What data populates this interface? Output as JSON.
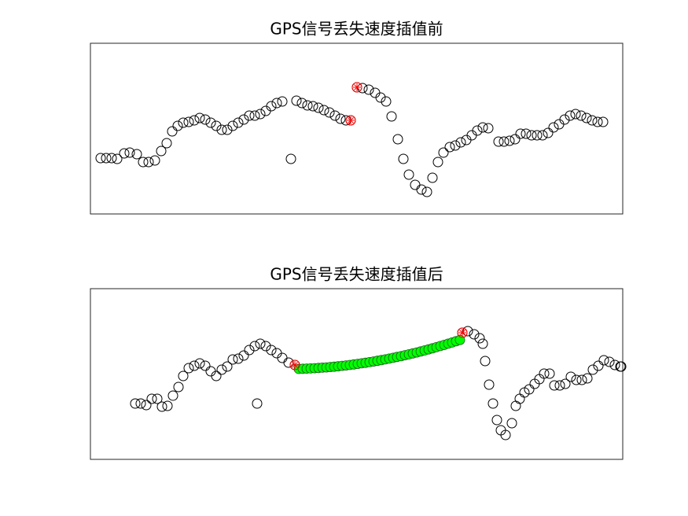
{
  "chart_data": [
    {
      "type": "scatter",
      "title": "GPS信号丢失速度插值前",
      "xlim": [
        0,
        677
      ],
      "ylim": [
        0,
        217
      ],
      "box": true,
      "series": [
        {
          "color": "#000000",
          "marker": "o",
          "x": [
            13,
            20,
            27,
            34,
            43,
            50,
            59,
            67,
            74,
            82,
            90,
            97,
            104,
            111,
            118,
            125,
            132,
            139,
            146,
            153,
            160,
            167,
            174,
            181,
            188,
            195,
            202,
            209,
            216,
            223,
            230,
            237,
            244,
            255,
            262,
            269,
            276,
            283,
            290,
            297,
            304,
            311,
            318,
            325,
            331,
            339,
            346,
            354,
            362,
            369,
            376,
            383,
            391,
            398,
            405,
            413,
            421,
            428,
            435,
            442,
            449,
            457,
            464,
            471,
            478,
            485,
            492,
            499,
            506,
            519,
            526,
            533,
            540,
            547,
            554,
            561,
            568,
            575,
            582,
            589,
            596,
            603,
            610,
            617,
            624,
            631,
            638,
            645,
            652
          ],
          "y": [
            71,
            71,
            71,
            70,
            77,
            78,
            76,
            66,
            66,
            68,
            80,
            90,
            105,
            112,
            116,
            117,
            119,
            122,
            120,
            116,
            112,
            107,
            107,
            112,
            116,
            120,
            125,
            125,
            127,
            131,
            137,
            141,
            143,
            70,
            144,
            141,
            138,
            137,
            135,
            132,
            129,
            125,
            121,
            119,
            119,
            161,
            160,
            158,
            154,
            148,
            143,
            124,
            95,
            70,
            50,
            37,
            31,
            28,
            46,
            66,
            78,
            85,
            87,
            91,
            94,
            100,
            106,
            110,
            109,
            92,
            92,
            93,
            95,
            102,
            102,
            100,
            100,
            100,
            103,
            110,
            114,
            120,
            125,
            127,
            125,
            122,
            119,
            117,
            117
          ]
        },
        {
          "color": "#ff0000",
          "marker": "o*",
          "x": [
            331,
            339
          ],
          "y": [
            119,
            161
          ]
        }
      ]
    },
    {
      "type": "scatter",
      "title": "GPS信号丢失速度插值后",
      "xlim": [
        0,
        677
      ],
      "ylim": [
        0,
        217
      ],
      "box": true,
      "series": [
        {
          "color": "#000000",
          "marker": "o",
          "x": [
            57,
            64,
            71,
            78,
            85,
            91,
            98,
            105,
            112,
            118,
            125,
            132,
            139,
            146,
            153,
            160,
            167,
            174,
            181,
            188,
            195,
            202,
            209,
            212,
            216,
            223,
            230,
            237,
            244,
            252,
            260,
            473,
            480,
            488,
            495,
            499,
            502,
            507,
            512,
            517,
            522,
            528,
            536,
            541,
            546,
            552,
            558,
            565,
            571,
            577,
            584,
            590,
            597,
            604,
            611,
            618,
            625,
            632,
            639,
            646,
            653,
            660,
            667,
            674,
            675
          ],
          "y": [
            71,
            71,
            69,
            77,
            77,
            67,
            68,
            81,
            92,
            106,
            116,
            119,
            122,
            119,
            112,
            106,
            114,
            118,
            127,
            128,
            132,
            139,
            144,
            71,
            147,
            144,
            139,
            135,
            129,
            123,
            120,
            161,
            163,
            159,
            154,
            147,
            125,
            95,
            71,
            50,
            37,
            31,
            46,
            68,
            77,
            85,
            89,
            96,
            102,
            109,
            109,
            94,
            94,
            96,
            105,
            101,
            101,
            103,
            114,
            119,
            126,
            124,
            120,
            118,
            118
          ]
        },
        {
          "color": "#00ff00",
          "marker": "o-filled",
          "x": [
            265,
            270,
            275,
            280,
            285,
            290,
            295,
            300,
            305,
            310,
            315,
            320,
            325,
            330,
            335,
            340,
            345,
            350,
            355,
            360,
            365,
            370,
            375,
            380,
            385,
            390,
            395,
            400,
            405,
            410,
            415,
            420,
            425,
            430,
            435,
            440,
            445,
            450,
            455,
            460,
            465,
            470
          ],
          "y": [
            115.0,
            115.2,
            115.4,
            115.6,
            115.9,
            116.2,
            116.6,
            116.9,
            117.4,
            117.8,
            118.3,
            118.9,
            119.4,
            120.0,
            120.7,
            121.4,
            122.1,
            122.8,
            123.6,
            124.4,
            125.3,
            126.2,
            127.1,
            128.1,
            129.1,
            130.2,
            131.2,
            132.4,
            133.5,
            134.7,
            135.9,
            137.2,
            138.5,
            139.8,
            141.2,
            142.6,
            144.1,
            145.5,
            147.1,
            148.6,
            150.2,
            151.8
          ]
        },
        {
          "color": "#ff0000",
          "marker": "o*",
          "x": [
            260,
            473
          ],
          "y": [
            120,
            161
          ]
        }
      ]
    }
  ]
}
